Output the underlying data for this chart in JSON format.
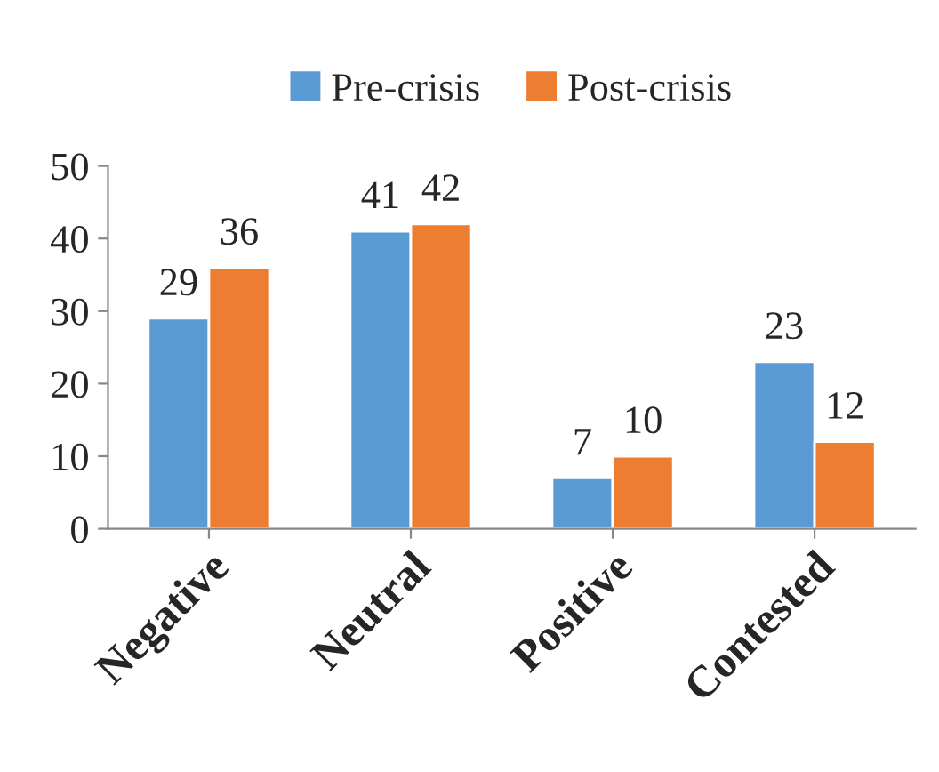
{
  "chart_data": {
    "type": "bar",
    "categories": [
      "Negative",
      "Neutral",
      "Positive",
      "Contested"
    ],
    "series": [
      {
        "name": "Pre-crisis",
        "color": "#5b9bd5",
        "values": [
          29,
          41,
          7,
          23
        ]
      },
      {
        "name": "Post-crisis",
        "color": "#ed7d31",
        "values": [
          36,
          42,
          10,
          12
        ]
      }
    ],
    "ylim": [
      0,
      50
    ],
    "yticks": [
      0,
      10,
      20,
      30,
      40,
      50
    ],
    "data_labels": true,
    "grid": false,
    "legend": "top"
  }
}
